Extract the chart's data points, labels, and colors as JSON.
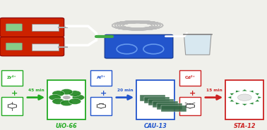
{
  "bg_color": "#f0f0eb",
  "pump_color": "#cc2200",
  "hotplate_color": "#2255cc",
  "beaker_color": "#d8e8f0",
  "schemes": [
    {
      "metal": "Zr⁴⁺",
      "metal_color": "#22aa22",
      "time": "45 min",
      "arrow_color": "#22aa22",
      "product": "UiO-66",
      "product_color": "#22aa22",
      "mof_color": "#228822"
    },
    {
      "metal": "Al³⁺",
      "metal_color": "#2255cc",
      "time": "20 min",
      "arrow_color": "#2255cc",
      "product": "CAU-13",
      "product_color": "#2255cc",
      "mof_color": "#336644"
    },
    {
      "metal": "Cd²⁺",
      "metal_color": "#cc2222",
      "time": "15 min",
      "arrow_color": "#cc2222",
      "product": "STA-12",
      "product_color": "#cc2222",
      "mof_color": "#228833"
    }
  ]
}
